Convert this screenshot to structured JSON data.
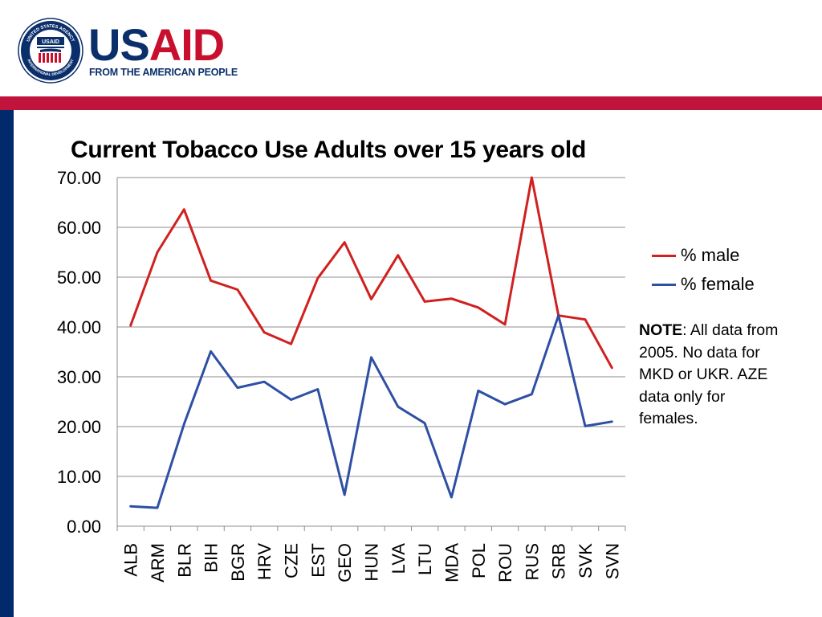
{
  "brand": {
    "name_part1": "US",
    "name_part2": "AID",
    "tagline": "FROM THE AMERICAN PEOPLE",
    "seal_top_text": "UNITED STATES AGENCY",
    "seal_bottom_text": "INTERNATIONAL DEVELOPMENT",
    "seal_center_text": "USAID",
    "colors": {
      "navy": "#0b2f6b",
      "red": "#c8102e"
    }
  },
  "theme": {
    "red_bar": "#c0143c",
    "navy_bar": "#002a6c"
  },
  "chart_data": {
    "type": "line",
    "title": "Current Tobacco Use Adults over 15 years old",
    "xlabel": "",
    "ylabel": "",
    "ylim": [
      0,
      70
    ],
    "yticks": [
      "0.00",
      "10.00",
      "20.00",
      "30.00",
      "40.00",
      "50.00",
      "60.00",
      "70.00"
    ],
    "grid": true,
    "legend_position": "right",
    "categories": [
      "ALB",
      "ARM",
      "BLR",
      "BIH",
      "BGR",
      "HRV",
      "CZE",
      "EST",
      "GEO",
      "HUN",
      "LVA",
      "LTU",
      "MDA",
      "POL",
      "ROU",
      "RUS",
      "SRB",
      "SVK",
      "SVN"
    ],
    "series": [
      {
        "name": "% male",
        "color": "#d0201f",
        "values": [
          40.3,
          55.0,
          63.6,
          49.3,
          47.5,
          38.9,
          36.6,
          49.8,
          57.0,
          45.6,
          54.4,
          45.1,
          45.7,
          43.9,
          40.5,
          70.0,
          42.3,
          41.5,
          31.8
        ]
      },
      {
        "name": "% female",
        "color": "#2e4fa4",
        "values": [
          4.0,
          3.7,
          20.5,
          35.1,
          27.8,
          29.0,
          25.4,
          27.5,
          6.3,
          33.9,
          24.0,
          20.7,
          5.8,
          27.2,
          24.5,
          26.5,
          42.3,
          20.1,
          21.0
        ]
      }
    ]
  },
  "note": {
    "label": "NOTE",
    "text": ": All data from 2005. No data for MKD or UKR. AZE data only for females."
  }
}
